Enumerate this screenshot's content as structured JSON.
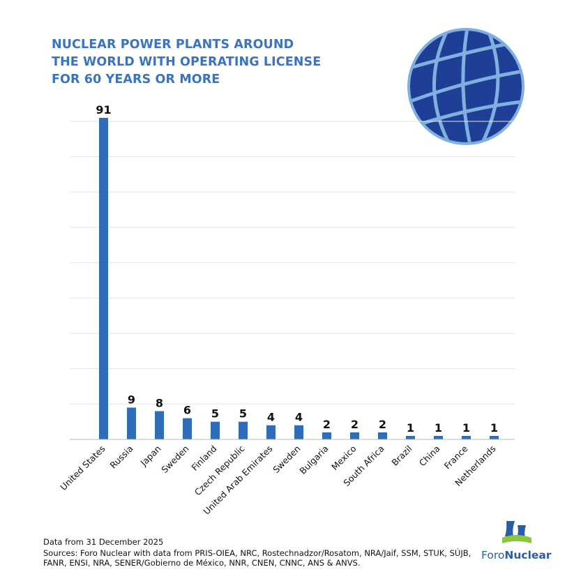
{
  "title_lines": [
    "NUCLEAR POWER PLANTS AROUND",
    "THE WORLD WITH OPERATING LICENSE",
    "FOR 60 YEARS OR MORE"
  ],
  "colors": {
    "title": "#3a74c0",
    "bar": "#2f6db7",
    "globe_fill": "#1f3f96",
    "globe_lines": "#7fb0e0",
    "grid": "#e3e3e3"
  },
  "chart_data": {
    "type": "bar",
    "title": "NUCLEAR POWER PLANTS AROUND THE WORLD WITH OPERATING LICENSE FOR 60 YEARS OR MORE",
    "categories": [
      "United States",
      "Russia",
      "Japan",
      "Sweden",
      "Finland",
      "Czech Republic",
      "United Arab Emirates",
      "Sweden",
      "Bulgaria",
      "Mexico",
      "South Africa",
      "Brazil",
      "China",
      "France",
      "Netherlands"
    ],
    "values": [
      91,
      9,
      8,
      6,
      5,
      5,
      4,
      4,
      2,
      2,
      2,
      1,
      1,
      1,
      1
    ],
    "data_labels": [
      "91",
      "9",
      "8",
      "6",
      "5",
      "5",
      "4",
      "4",
      "2",
      "2",
      "2",
      "1",
      "1",
      "1",
      "1"
    ],
    "xlabel": "",
    "ylabel": "",
    "ylim": [
      0,
      90
    ],
    "grid_step": 10,
    "grid": true,
    "legend": "none"
  },
  "footer": {
    "note": "Data from 31 December 2025",
    "sources": "Sources: Foro Nuclear with data from PRIS-OIEA, NRC, Rostechnadzor/Rosatom, NRA/Jaif, SSM, STUK, SÚJB, FANR, ENSI, NRA, SENER/Gobierno de México, NNR, CNEN, CNNC, ANS & ANVS."
  },
  "logo": {
    "text_part1": "Foro",
    "text_part2": "Nuclear",
    "icon": "cooling-tower-icon"
  },
  "globe_icon": "globe-icon"
}
